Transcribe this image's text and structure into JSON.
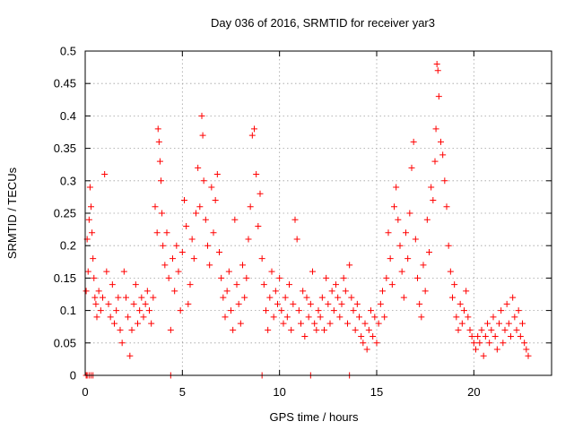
{
  "chart_data": {
    "type": "scatter",
    "title": "Day 036 of 2016, SRMTID for receiver yar3",
    "xlabel": "GPS time / hours",
    "ylabel": "SRMTID / TECUs",
    "xlim": [
      0,
      24
    ],
    "ylim": [
      0,
      0.5
    ],
    "xticks": [
      0,
      5,
      10,
      15,
      20
    ],
    "xtick_labels": [
      "0",
      "5",
      "10",
      "15",
      "20"
    ],
    "yticks": [
      0,
      0.05,
      0.1,
      0.15,
      0.2,
      0.25,
      0.3,
      0.35,
      0.4,
      0.45,
      0.5
    ],
    "ytick_labels": [
      "0",
      "0.05",
      "0.1",
      "0.15",
      "0.2",
      "0.25",
      "0.3",
      "0.35",
      "0.4",
      "0.45",
      "0.5"
    ],
    "grid": true,
    "marker": "+",
    "color": "#ff0000",
    "series": [
      {
        "name": "SRMTID",
        "x": [
          0.05,
          0.1,
          0.15,
          0.2,
          0.25,
          0.3,
          0.35,
          0.4,
          0.45,
          0.5,
          0.55,
          0.6,
          0.7,
          0.8,
          0.9,
          1.0,
          1.1,
          1.2,
          1.3,
          1.4,
          1.5,
          1.6,
          1.7,
          1.8,
          1.9,
          2.0,
          2.1,
          2.2,
          2.3,
          2.4,
          2.5,
          2.6,
          2.7,
          2.8,
          2.9,
          3.0,
          3.1,
          3.2,
          3.3,
          3.4,
          3.5,
          3.6,
          3.7,
          3.75,
          3.8,
          3.85,
          3.9,
          3.95,
          4.0,
          4.1,
          4.2,
          4.3,
          4.4,
          4.5,
          4.6,
          4.7,
          4.8,
          4.9,
          5.0,
          5.1,
          5.2,
          5.3,
          5.4,
          5.5,
          5.6,
          5.7,
          5.8,
          5.9,
          6.0,
          6.05,
          6.1,
          6.2,
          6.3,
          6.4,
          6.5,
          6.6,
          6.7,
          6.8,
          6.9,
          7.0,
          7.1,
          7.2,
          7.3,
          7.4,
          7.5,
          7.6,
          7.7,
          7.8,
          7.9,
          8.0,
          8.1,
          8.2,
          8.3,
          8.4,
          8.5,
          8.6,
          8.7,
          8.8,
          8.9,
          9.0,
          9.1,
          9.2,
          9.3,
          9.4,
          9.5,
          9.6,
          9.7,
          9.8,
          9.9,
          10.0,
          10.1,
          10.2,
          10.3,
          10.4,
          10.5,
          10.6,
          10.7,
          10.8,
          10.9,
          11.0,
          11.1,
          11.2,
          11.3,
          11.4,
          11.5,
          11.6,
          11.7,
          11.8,
          11.9,
          12.0,
          12.1,
          12.2,
          12.3,
          12.4,
          12.5,
          12.6,
          12.7,
          12.8,
          12.9,
          13.0,
          13.1,
          13.2,
          13.3,
          13.4,
          13.5,
          13.6,
          13.7,
          13.8,
          13.9,
          14.0,
          14.1,
          14.2,
          14.3,
          14.4,
          14.5,
          14.6,
          14.7,
          14.8,
          14.9,
          15.0,
          15.1,
          15.2,
          15.3,
          15.4,
          15.5,
          15.6,
          15.7,
          15.8,
          15.9,
          16.0,
          16.1,
          16.2,
          16.3,
          16.4,
          16.5,
          16.6,
          16.7,
          16.8,
          16.9,
          17.0,
          17.1,
          17.2,
          17.3,
          17.4,
          17.5,
          17.6,
          17.7,
          17.8,
          17.9,
          18.0,
          18.05,
          18.1,
          18.15,
          18.2,
          18.3,
          18.4,
          18.5,
          18.6,
          18.7,
          18.8,
          18.9,
          19.0,
          19.1,
          19.2,
          19.3,
          19.4,
          19.5,
          19.6,
          19.7,
          19.8,
          19.9,
          20.0,
          20.1,
          20.2,
          20.3,
          20.4,
          20.5,
          20.6,
          20.7,
          20.8,
          20.9,
          21.0,
          21.1,
          21.2,
          21.3,
          21.4,
          21.5,
          21.6,
          21.7,
          21.8,
          21.9,
          22.0,
          22.1,
          22.2,
          22.3,
          22.4,
          22.5,
          22.6,
          22.7,
          22.8,
          0.05,
          0.1,
          0.2,
          0.3,
          0.4,
          4.4,
          9.1,
          11.6,
          13.6
        ],
        "y": [
          0.13,
          0.21,
          0.16,
          0.24,
          0.29,
          0.26,
          0.22,
          0.18,
          0.15,
          0.12,
          0.11,
          0.09,
          0.13,
          0.1,
          0.12,
          0.31,
          0.16,
          0.11,
          0.09,
          0.14,
          0.08,
          0.1,
          0.12,
          0.07,
          0.05,
          0.16,
          0.12,
          0.09,
          0.03,
          0.07,
          0.11,
          0.14,
          0.08,
          0.1,
          0.12,
          0.09,
          0.11,
          0.13,
          0.1,
          0.08,
          0.12,
          0.26,
          0.22,
          0.38,
          0.36,
          0.33,
          0.3,
          0.25,
          0.2,
          0.17,
          0.22,
          0.15,
          0.07,
          0.18,
          0.13,
          0.2,
          0.16,
          0.1,
          0.19,
          0.27,
          0.23,
          0.11,
          0.14,
          0.21,
          0.18,
          0.25,
          0.32,
          0.26,
          0.4,
          0.37,
          0.3,
          0.24,
          0.2,
          0.17,
          0.29,
          0.22,
          0.27,
          0.31,
          0.19,
          0.15,
          0.12,
          0.09,
          0.13,
          0.16,
          0.1,
          0.07,
          0.24,
          0.14,
          0.11,
          0.08,
          0.17,
          0.12,
          0.15,
          0.21,
          0.26,
          0.37,
          0.38,
          0.31,
          0.23,
          0.28,
          0.18,
          0.14,
          0.1,
          0.07,
          0.12,
          0.16,
          0.09,
          0.13,
          0.11,
          0.15,
          0.1,
          0.08,
          0.12,
          0.09,
          0.14,
          0.07,
          0.11,
          0.24,
          0.21,
          0.1,
          0.08,
          0.13,
          0.06,
          0.12,
          0.09,
          0.11,
          0.16,
          0.08,
          0.07,
          0.1,
          0.09,
          0.12,
          0.07,
          0.15,
          0.11,
          0.08,
          0.13,
          0.1,
          0.14,
          0.12,
          0.09,
          0.11,
          0.15,
          0.13,
          0.08,
          0.17,
          0.12,
          0.1,
          0.07,
          0.11,
          0.09,
          0.06,
          0.05,
          0.08,
          0.04,
          0.07,
          0.1,
          0.06,
          0.09,
          0.05,
          0.08,
          0.11,
          0.13,
          0.09,
          0.15,
          0.22,
          0.18,
          0.14,
          0.26,
          0.29,
          0.24,
          0.2,
          0.16,
          0.12,
          0.22,
          0.18,
          0.25,
          0.32,
          0.36,
          0.21,
          0.15,
          0.11,
          0.09,
          0.17,
          0.13,
          0.24,
          0.19,
          0.29,
          0.27,
          0.33,
          0.38,
          0.48,
          0.47,
          0.43,
          0.36,
          0.34,
          0.3,
          0.26,
          0.2,
          0.16,
          0.12,
          0.14,
          0.09,
          0.07,
          0.11,
          0.08,
          0.1,
          0.13,
          0.09,
          0.07,
          0.06,
          0.05,
          0.04,
          0.06,
          0.05,
          0.07,
          0.03,
          0.06,
          0.08,
          0.05,
          0.07,
          0.09,
          0.06,
          0.04,
          0.08,
          0.1,
          0.05,
          0.07,
          0.11,
          0.08,
          0.06,
          0.12,
          0.09,
          0.07,
          0.1,
          0.06,
          0.08,
          0.05,
          0.04,
          0.03,
          0.0,
          0.0,
          0.0,
          0.0,
          0.0,
          0.0,
          0.0,
          0.0,
          0.0
        ]
      }
    ]
  }
}
